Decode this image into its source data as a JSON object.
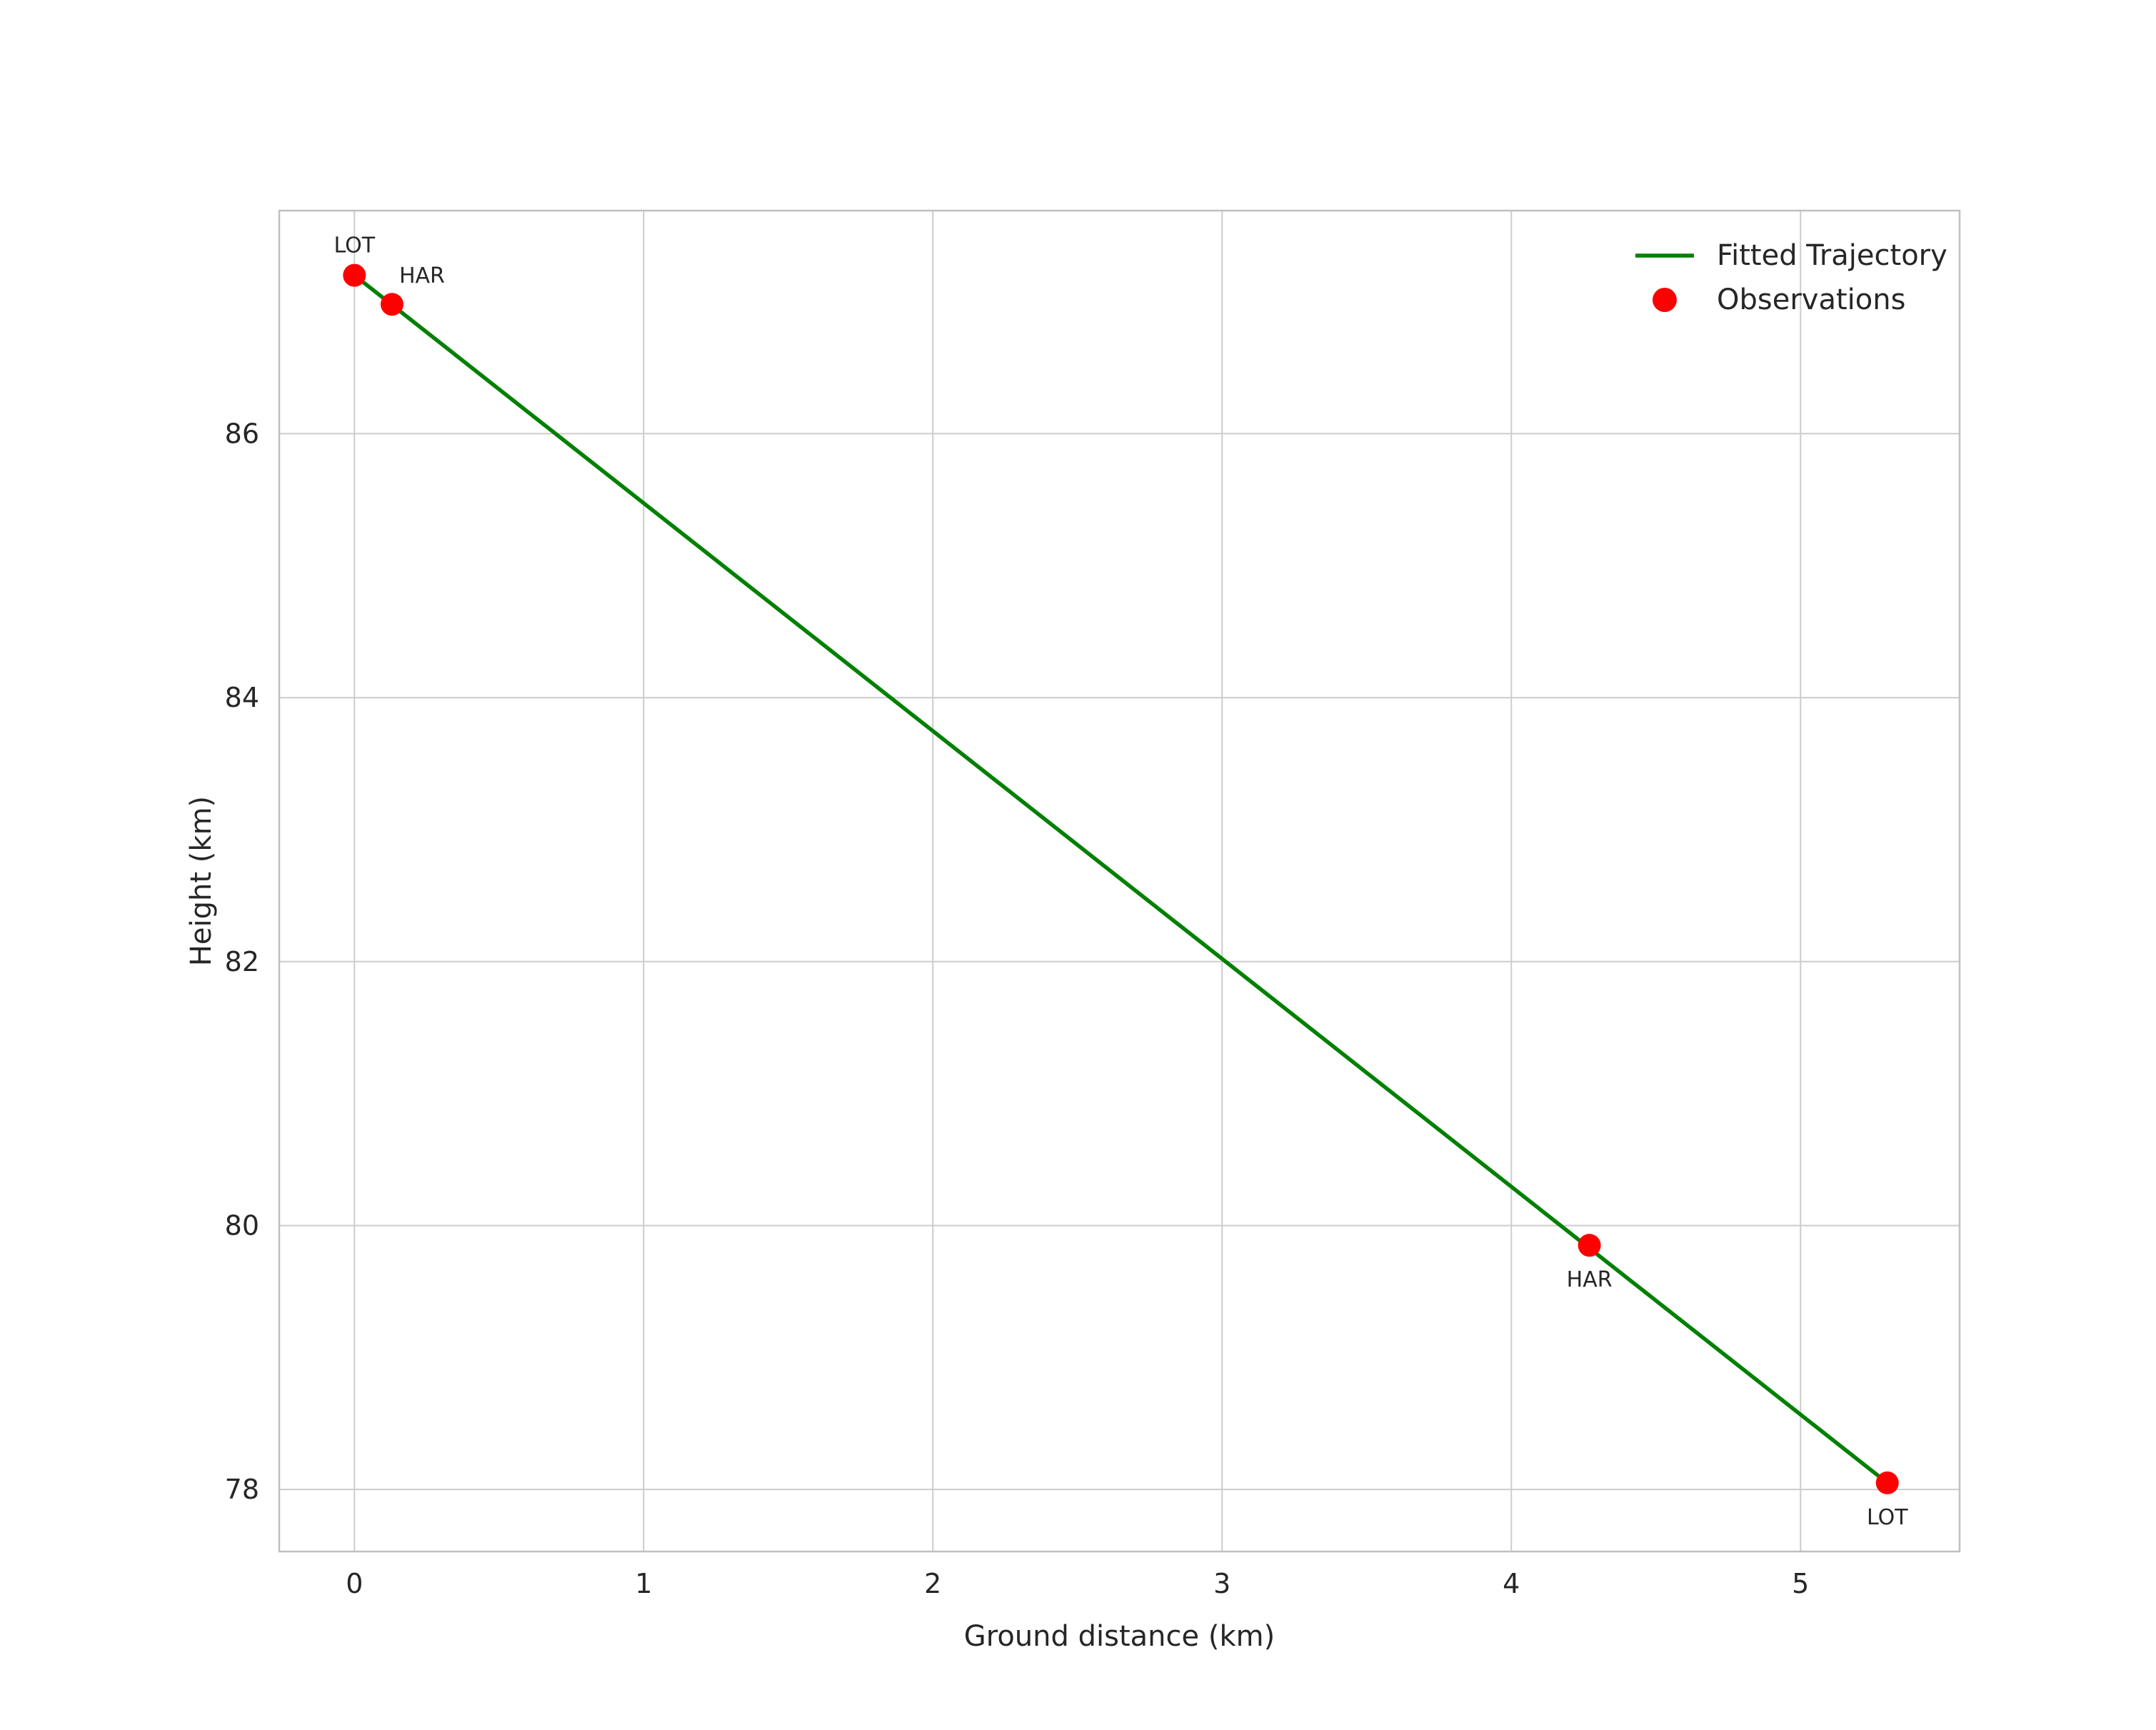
{
  "chart_data": {
    "type": "scatter",
    "title": "",
    "xlabel": "Ground distance (km)",
    "ylabel": "Height (km)",
    "xlim": [
      -0.26,
      5.55
    ],
    "ylim": [
      77.53,
      87.69
    ],
    "xticks": [
      0,
      1,
      2,
      3,
      4,
      5
    ],
    "yticks": [
      78,
      80,
      82,
      84,
      86
    ],
    "grid": true,
    "colors": {
      "fitted_line": "#008000",
      "observation": "#ff0000",
      "gridline": "#cccccc",
      "spine": "#c0c0c0",
      "text": "#262626",
      "annotation": "#1a1a1a",
      "background": "#ffffff"
    },
    "legend": {
      "position": "upper right",
      "entries": [
        {
          "label": "Fitted Trajectory",
          "marker": "line",
          "color": "#008000"
        },
        {
          "label": "Observations",
          "marker": "point",
          "color": "#ff0000"
        }
      ]
    },
    "series": [
      {
        "name": "Fitted Trajectory",
        "type": "line",
        "color": "#008000",
        "points": [
          [
            0.0,
            87.2
          ],
          [
            5.3,
            78.05
          ]
        ]
      },
      {
        "name": "Observations",
        "type": "scatter",
        "color": "#ff0000",
        "points": [
          {
            "x": 0.0,
            "y": 87.2,
            "label": "LOT",
            "label_anchor": "above"
          },
          {
            "x": 0.13,
            "y": 86.98,
            "label": "HAR",
            "label_anchor": "above-right"
          },
          {
            "x": 4.27,
            "y": 79.85,
            "label": "HAR",
            "label_anchor": "below"
          },
          {
            "x": 5.3,
            "y": 78.05,
            "label": "LOT",
            "label_anchor": "below"
          }
        ]
      }
    ]
  }
}
